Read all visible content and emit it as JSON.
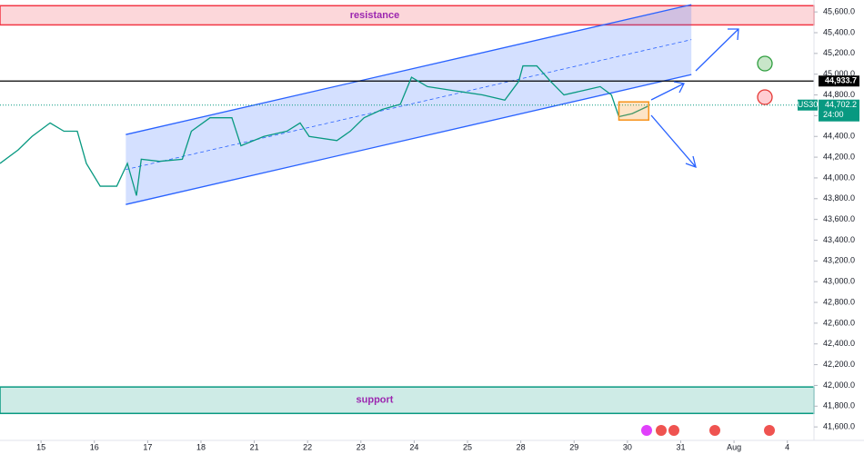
{
  "chart_data": {
    "type": "line",
    "series": [
      {
        "name": "US30",
        "color": "#089981",
        "x": [
          -0.77,
          -0.43,
          -0.17,
          0.17,
          0.43,
          0.68,
          0.85,
          1.11,
          1.42,
          1.62,
          1.79,
          1.88,
          2.22,
          2.65,
          2.82,
          3.17,
          3.58,
          3.75,
          4.18,
          4.61,
          4.86,
          5.03,
          5.55,
          5.8,
          6.06,
          6.4,
          6.74,
          6.95,
          7.25,
          7.76,
          8.28,
          8.7,
          8.96,
          9.04,
          9.3,
          9.56,
          9.81,
          10.15,
          10.49,
          10.7,
          10.84,
          11.09,
          11.38
        ],
        "values": [
          44140,
          44270,
          44400,
          44530,
          44450,
          44450,
          44140,
          43920,
          43920,
          44140,
          43830,
          44180,
          44160,
          44180,
          44450,
          44580,
          44580,
          44310,
          44400,
          44450,
          44530,
          44400,
          44360,
          44450,
          44580,
          44660,
          44710,
          44970,
          44880,
          44840,
          44800,
          44750,
          44930,
          45080,
          45080,
          44930,
          44800,
          44840,
          44880,
          44800,
          44590,
          44620,
          44690
        ]
      }
    ],
    "xlim": [
      -0.77,
      14.5
    ],
    "xticks": [
      {
        "value": 0,
        "label": "15"
      },
      {
        "value": 1,
        "label": "16"
      },
      {
        "value": 2,
        "label": "17"
      },
      {
        "value": 3,
        "label": "18"
      },
      {
        "value": 4,
        "label": "21"
      },
      {
        "value": 5,
        "label": "22"
      },
      {
        "value": 6,
        "label": "23"
      },
      {
        "value": 7,
        "label": "24"
      },
      {
        "value": 8,
        "label": "25"
      },
      {
        "value": 9,
        "label": "28"
      },
      {
        "value": 10,
        "label": "29"
      },
      {
        "value": 11,
        "label": "30"
      },
      {
        "value": 12,
        "label": "31"
      },
      {
        "value": 13,
        "label": "Aug"
      },
      {
        "value": 14,
        "label": "4"
      }
    ],
    "ylim": [
      41470,
      45715
    ],
    "yticks": [
      {
        "value": 41600,
        "label": "41,600.0"
      },
      {
        "value": 41800,
        "label": "41,800.0"
      },
      {
        "value": 42000,
        "label": "42,000.0"
      },
      {
        "value": 42200,
        "label": "42,200.0"
      },
      {
        "value": 42400,
        "label": "42,400.0"
      },
      {
        "value": 42600,
        "label": "42,600.0"
      },
      {
        "value": 42800,
        "label": "42,800.0"
      },
      {
        "value": 43000,
        "label": "43,000.0"
      },
      {
        "value": 43200,
        "label": "43,200.0"
      },
      {
        "value": 43400,
        "label": "43,400.0"
      },
      {
        "value": 43600,
        "label": "43,600.0"
      },
      {
        "value": 43800,
        "label": "43,800.0"
      },
      {
        "value": 44000,
        "label": "44,000.0"
      },
      {
        "value": 44200,
        "label": "44,200.0"
      },
      {
        "value": 44400,
        "label": "44,400.0"
      },
      {
        "value": 44600,
        "label": "44,600.0"
      },
      {
        "value": 44800,
        "label": "44,800.0"
      },
      {
        "value": 45000,
        "label": "45,000.0"
      },
      {
        "value": 45200,
        "label": "45,200.0"
      },
      {
        "value": 45400,
        "label": "45,400.0"
      },
      {
        "value": 45600,
        "label": "45,600.0"
      }
    ],
    "zones": [
      {
        "label": "resistance",
        "ylim": [
          45475,
          45660
        ],
        "color": "#f23645"
      },
      {
        "label": "support",
        "ylim": [
          41730,
          41985
        ],
        "color": "#089981"
      }
    ],
    "channel": {
      "color": "#2962ff",
      "x": [
        1.59,
        12.2
      ],
      "upper": [
        44418,
        45670
      ],
      "lower": [
        43744,
        44996
      ]
    },
    "box": {
      "x": [
        10.84,
        11.4
      ],
      "ylim": [
        44558,
        44733
      ],
      "color": "#f7931a"
    },
    "horizontal_line": {
      "value": 44933.7,
      "label": "44,933.7"
    },
    "last_price": {
      "value": 44702.2,
      "label": "44,702.2"
    },
    "countdown": "24:00"
  }
}
